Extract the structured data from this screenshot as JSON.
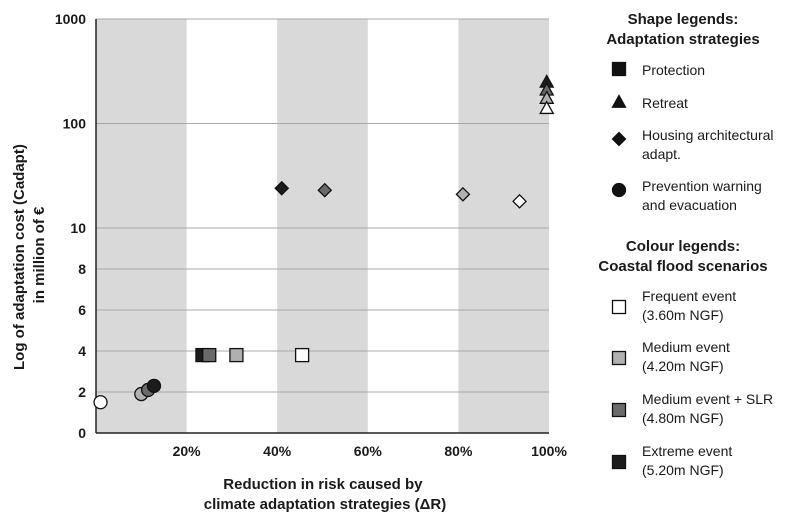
{
  "chart_data": {
    "type": "scatter",
    "xlabel_lines": [
      "Reduction in risk caused by",
      "climate adaptation strategies (ΔR)"
    ],
    "ylabel_lines": [
      "Log of adaptation cost (Cadapt)",
      "in million of €"
    ],
    "x_ticks": [
      "20%",
      "40%",
      "60%",
      "80%",
      "100%"
    ],
    "y_ticks": [
      "0",
      "2",
      "4",
      "6",
      "8",
      "10",
      "100",
      "1000"
    ],
    "xlim": [
      0,
      100
    ],
    "y_scale": "piecewise: linear 0–10, log 10–1000",
    "shaded_bands": [
      [
        0,
        20
      ],
      [
        40,
        60
      ],
      [
        80,
        100
      ]
    ],
    "shape_legend": {
      "title_lines": [
        "Shape legends:",
        "Adaptation strategies"
      ],
      "items": [
        {
          "shape": "square",
          "label_lines": [
            "Protection"
          ]
        },
        {
          "shape": "triangle",
          "label_lines": [
            "Retreat"
          ]
        },
        {
          "shape": "diamond",
          "label_lines": [
            "Housing architectural",
            "adapt."
          ]
        },
        {
          "shape": "circle",
          "label_lines": [
            "Prevention warning",
            "and evacuation"
          ]
        }
      ]
    },
    "colour_legend": {
      "title_lines": [
        "Colour legends:",
        "Coastal flood scenarios"
      ],
      "items": [
        {
          "color": "#ffffff",
          "label_lines": [
            "Frequent event",
            "(3.60m NGF)"
          ]
        },
        {
          "color": "#b0b0b0",
          "label_lines": [
            "Medium event",
            "(4.20m NGF)"
          ]
        },
        {
          "color": "#6a6a6a",
          "label_lines": [
            "Medium event + SLR",
            "(4.80m NGF)"
          ]
        },
        {
          "color": "#1c1c1c",
          "label_lines": [
            "Extreme event",
            "(5.20m NGF)"
          ]
        }
      ]
    },
    "points": [
      {
        "shape": "circle",
        "scenario": "Frequent event",
        "x": 1,
        "y": 1.5
      },
      {
        "shape": "circle",
        "scenario": "Medium event",
        "x": 10,
        "y": 1.9
      },
      {
        "shape": "circle",
        "scenario": "Medium event + SLR",
        "x": 11.5,
        "y": 2.1
      },
      {
        "shape": "circle",
        "scenario": "Extreme event",
        "x": 12.8,
        "y": 2.3
      },
      {
        "shape": "square",
        "scenario": "Extreme event",
        "x": 23.5,
        "y": 3.8
      },
      {
        "shape": "square",
        "scenario": "Medium event + SLR",
        "x": 25,
        "y": 3.8
      },
      {
        "shape": "square",
        "scenario": "Medium event",
        "x": 31,
        "y": 3.8
      },
      {
        "shape": "square",
        "scenario": "Frequent event",
        "x": 45.5,
        "y": 3.8
      },
      {
        "shape": "diamond",
        "scenario": "Extreme event",
        "x": 41,
        "y": 24
      },
      {
        "shape": "diamond",
        "scenario": "Medium event + SLR",
        "x": 50.5,
        "y": 23
      },
      {
        "shape": "diamond",
        "scenario": "Medium event",
        "x": 81,
        "y": 21
      },
      {
        "shape": "diamond",
        "scenario": "Frequent event",
        "x": 93.5,
        "y": 18
      },
      {
        "shape": "triangle",
        "scenario": "Extreme event",
        "x": 99.5,
        "y": 250
      },
      {
        "shape": "triangle",
        "scenario": "Medium event + SLR",
        "x": 99.5,
        "y": 210
      },
      {
        "shape": "triangle",
        "scenario": "Medium event",
        "x": 99.5,
        "y": 175
      },
      {
        "shape": "triangle",
        "scenario": "Frequent event",
        "x": 99.5,
        "y": 140
      }
    ]
  }
}
